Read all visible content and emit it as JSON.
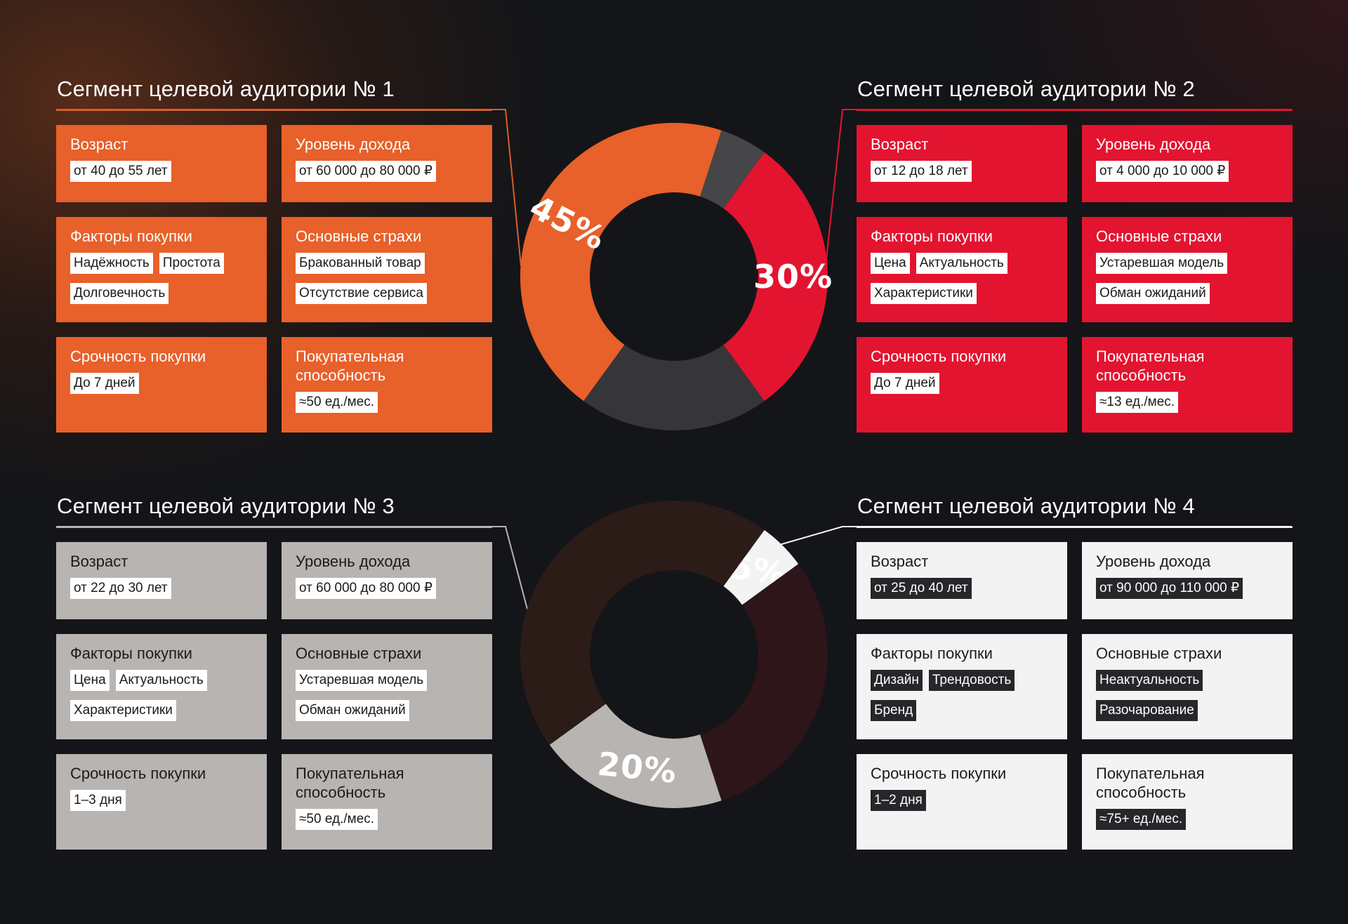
{
  "segments": [
    {
      "title": "Сегмент целевой аудитории № 1",
      "age": {
        "label": "Возраст",
        "value": "от 40 до 55 лет"
      },
      "income": {
        "label": "Уровень дохода",
        "value": "от 60 000 до 80 000 ₽"
      },
      "factors": {
        "label": "Факторы покупки",
        "items": [
          "Надёжность",
          "Простота",
          "Долговечность"
        ]
      },
      "fears": {
        "label": "Основные страхи",
        "items": [
          "Бракованный товар",
          "Отсутствие сервиса"
        ]
      },
      "urgency": {
        "label": "Срочность покупки",
        "value": "До 7 дней"
      },
      "power": {
        "label": "Покупательная способность",
        "value": "≈50 ед./мес."
      }
    },
    {
      "title": "Сегмент целевой аудитории № 2",
      "age": {
        "label": "Возраст",
        "value": "от 12 до 18 лет"
      },
      "income": {
        "label": "Уровень дохода",
        "value": "от 4 000 до 10 000 ₽"
      },
      "factors": {
        "label": "Факторы покупки",
        "items": [
          "Цена",
          "Актуальность",
          "Характеристики"
        ]
      },
      "fears": {
        "label": "Основные страхи",
        "items": [
          "Устаревшая модель",
          "Обман ожиданий"
        ]
      },
      "urgency": {
        "label": "Срочность покупки",
        "value": "До 7 дней"
      },
      "power": {
        "label": "Покупательная способность",
        "value": "≈13 ед./мес."
      }
    },
    {
      "title": "Сегмент целевой аудитории № 3",
      "age": {
        "label": "Возраст",
        "value": "от 22 до 30 лет"
      },
      "income": {
        "label": "Уровень дохода",
        "value": "от 60 000 до 80 000 ₽"
      },
      "factors": {
        "label": "Факторы покупки",
        "items": [
          "Цена",
          "Актуальность",
          "Характеристики"
        ]
      },
      "fears": {
        "label": "Основные страхи",
        "items": [
          "Устаревшая модель",
          "Обман ожиданий"
        ]
      },
      "urgency": {
        "label": "Срочность покупки",
        "value": "1–3 дня"
      },
      "power": {
        "label": "Покупательная способность",
        "value": "≈50 ед./мес."
      }
    },
    {
      "title": "Сегмент целевой аудитории № 4",
      "age": {
        "label": "Возраст",
        "value": "от 25 до 40 лет"
      },
      "income": {
        "label": "Уровень дохода",
        "value": "от 90 000 до 110 000 ₽"
      },
      "factors": {
        "label": "Факторы покупки",
        "items": [
          "Дизайн",
          "Трендовость",
          "Бренд"
        ]
      },
      "fears": {
        "label": "Основные страхи",
        "items": [
          "Неактуальность",
          "Разочарование"
        ]
      },
      "urgency": {
        "label": "Срочность покупки",
        "value": "1–2 дня"
      },
      "power": {
        "label": "Покупательная способность",
        "value": "≈75+ ед./мес."
      }
    }
  ],
  "chart_data": [
    {
      "type": "pie",
      "variant": "donut",
      "slices": [
        {
          "label": "45%",
          "value": 45,
          "color": "#e8602a",
          "highlighted": true
        },
        {
          "label": "",
          "value": 5,
          "color": "#464648",
          "highlighted": false
        },
        {
          "label": "30%",
          "value": 30,
          "color": "#e31430",
          "highlighted": true
        },
        {
          "label": "",
          "value": 20,
          "color": "#363638",
          "highlighted": false
        }
      ]
    },
    {
      "type": "pie",
      "variant": "donut",
      "slices": [
        {
          "label": "5%",
          "value": 5,
          "color": "#f3f3f3",
          "highlighted": true
        },
        {
          "label": "",
          "value": 30,
          "color": "#2d1519",
          "highlighted": false
        },
        {
          "label": "20%",
          "value": 20,
          "color": "#b7b4b2",
          "highlighted": true
        },
        {
          "label": "",
          "value": 45,
          "color": "#2b1c18",
          "highlighted": false
        }
      ]
    }
  ]
}
